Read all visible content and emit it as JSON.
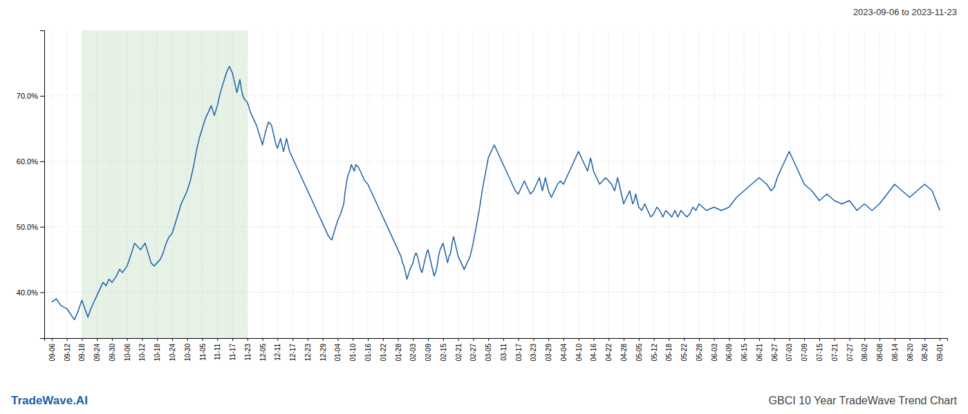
{
  "chart_data": {
    "type": "line",
    "title": "GBCI 10 Year TradeWave Trend Chart",
    "subtitle": "2023-09-06 to 2023-11-23",
    "annotations": [
      "TradeWave.AI"
    ],
    "color": "#1a5fa8",
    "grid": true,
    "highlight": {
      "from": 2,
      "to": 13,
      "color": "#d6ead6"
    },
    "xlim": [
      -0.5,
      59.5
    ],
    "xticks": [
      {
        "value": 0,
        "label": "09-06"
      },
      {
        "value": 1,
        "label": "09-12"
      },
      {
        "value": 2,
        "label": "09-18"
      },
      {
        "value": 3,
        "label": "09-24"
      },
      {
        "value": 4,
        "label": "09-30"
      },
      {
        "value": 5,
        "label": "10-06"
      },
      {
        "value": 6,
        "label": "10-12"
      },
      {
        "value": 7,
        "label": "10-18"
      },
      {
        "value": 8,
        "label": "10-24"
      },
      {
        "value": 9,
        "label": "10-30"
      },
      {
        "value": 10,
        "label": "11-05"
      },
      {
        "value": 11,
        "label": "11-11"
      },
      {
        "value": 12,
        "label": "11-17"
      },
      {
        "value": 13,
        "label": "11-23"
      },
      {
        "value": 14,
        "label": "12-05"
      },
      {
        "value": 15,
        "label": "12-11"
      },
      {
        "value": 16,
        "label": "12-17"
      },
      {
        "value": 17,
        "label": "12-23"
      },
      {
        "value": 18,
        "label": "12-29"
      },
      {
        "value": 19,
        "label": "01-04"
      },
      {
        "value": 20,
        "label": "01-10"
      },
      {
        "value": 21,
        "label": "01-16"
      },
      {
        "value": 22,
        "label": "01-22"
      },
      {
        "value": 23,
        "label": "01-28"
      },
      {
        "value": 24,
        "label": "02-03"
      },
      {
        "value": 25,
        "label": "02-09"
      },
      {
        "value": 26,
        "label": "02-15"
      },
      {
        "value": 27,
        "label": "02-21"
      },
      {
        "value": 28,
        "label": "02-27"
      },
      {
        "value": 29,
        "label": "03-05"
      },
      {
        "value": 30,
        "label": "03-11"
      },
      {
        "value": 31,
        "label": "03-17"
      },
      {
        "value": 32,
        "label": "03-23"
      },
      {
        "value": 33,
        "label": "03-29"
      },
      {
        "value": 34,
        "label": "04-04"
      },
      {
        "value": 35,
        "label": "04-10"
      },
      {
        "value": 36,
        "label": "04-16"
      },
      {
        "value": 37,
        "label": "04-22"
      },
      {
        "value": 38,
        "label": "04-28"
      },
      {
        "value": 39,
        "label": "05-05"
      },
      {
        "value": 40,
        "label": "05-12"
      },
      {
        "value": 41,
        "label": "05-18"
      },
      {
        "value": 42,
        "label": "05-22"
      },
      {
        "value": 43,
        "label": "05-28"
      },
      {
        "value": 44,
        "label": "06-03"
      },
      {
        "value": 45,
        "label": "06-09"
      },
      {
        "value": 46,
        "label": "06-15"
      },
      {
        "value": 47,
        "label": "06-21"
      },
      {
        "value": 48,
        "label": "06-27"
      },
      {
        "value": 49,
        "label": "07-03"
      },
      {
        "value": 50,
        "label": "07-09"
      },
      {
        "value": 51,
        "label": "07-15"
      },
      {
        "value": 52,
        "label": "07-21"
      },
      {
        "value": 53,
        "label": "07-27"
      },
      {
        "value": 54,
        "label": "08-02"
      },
      {
        "value": 55,
        "label": "08-08"
      },
      {
        "value": 56,
        "label": "08-14"
      },
      {
        "value": 57,
        "label": "08-20"
      },
      {
        "value": 58,
        "label": "08-26"
      },
      {
        "value": 59,
        "label": "09-01"
      }
    ],
    "ylim": [
      33,
      80
    ],
    "yticks": [
      {
        "value": 40.0,
        "label": "40.0%"
      },
      {
        "value": 50.0,
        "label": "50.0%"
      },
      {
        "value": 60.0,
        "label": "60.0%"
      },
      {
        "value": 70.0,
        "label": "70.0%"
      }
    ],
    "x": [
      0,
      0.3,
      0.6,
      1.0,
      1.3,
      1.5,
      1.7,
      2.0,
      2.2,
      2.4,
      2.6,
      2.8,
      3.0,
      3.2,
      3.4,
      3.6,
      3.8,
      4.0,
      4.3,
      4.5,
      4.7,
      5.0,
      5.3,
      5.5,
      5.7,
      5.9,
      6.2,
      6.4,
      6.6,
      6.8,
      7.0,
      7.2,
      7.4,
      7.6,
      7.8,
      8.0,
      8.2,
      8.4,
      8.6,
      8.8,
      9.0,
      9.2,
      9.4,
      9.6,
      9.8,
      10.0,
      10.2,
      10.4,
      10.6,
      10.8,
      11.0,
      11.2,
      11.4,
      11.6,
      11.8,
      12.0,
      12.1,
      12.2,
      12.3,
      12.4,
      12.5,
      12.6,
      12.7,
      12.8,
      13.0,
      13.2,
      13.4,
      13.6,
      13.8,
      14.0,
      14.2,
      14.4,
      14.6,
      14.7,
      14.8,
      14.9,
      15.0,
      15.2,
      15.3,
      15.4,
      15.5,
      15.6,
      15.7,
      15.8,
      16.0,
      16.2,
      16.4,
      16.6,
      16.8,
      17.0,
      17.2,
      17.4,
      17.6,
      17.8,
      18.0,
      18.2,
      18.4,
      18.6,
      18.8,
      19.0,
      19.2,
      19.4,
      19.5,
      19.6,
      19.7,
      19.8,
      19.9,
      20.0,
      20.1,
      20.2,
      20.4,
      20.6,
      20.8,
      21.0,
      21.2,
      21.4,
      21.6,
      21.8,
      22.0,
      22.2,
      22.4,
      22.6,
      22.8,
      23.0,
      23.2,
      23.3,
      23.4,
      23.5,
      23.6,
      23.8,
      24.0,
      24.1,
      24.2,
      24.3,
      24.4,
      24.5,
      24.6,
      24.7,
      24.8,
      24.9,
      25.0,
      25.1,
      25.2,
      25.3,
      25.4,
      25.5,
      25.6,
      25.7,
      25.8,
      25.9,
      26.0,
      26.1,
      26.2,
      26.3,
      26.4,
      26.5,
      26.6,
      26.7,
      26.8,
      26.9,
      27.0,
      27.2,
      27.4,
      27.6,
      27.8,
      28.0,
      28.2,
      28.4,
      28.6,
      28.8,
      29.0,
      29.2,
      29.4,
      29.6,
      29.8,
      30.0,
      30.2,
      30.4,
      30.6,
      30.8,
      31.0,
      31.2,
      31.4,
      31.6,
      31.8,
      32.0,
      32.2,
      32.4,
      32.5,
      32.6,
      32.7,
      32.8,
      32.9,
      33.0,
      33.2,
      33.4,
      33.6,
      33.8,
      34.0,
      34.2,
      34.4,
      34.6,
      34.8,
      35.0,
      35.2,
      35.4,
      35.6,
      35.7,
      35.8,
      35.9,
      36.0,
      36.2,
      36.4,
      36.6,
      36.8,
      37.0,
      37.2,
      37.4,
      37.5,
      37.6,
      37.7,
      37.8,
      37.9,
      38.0,
      38.2,
      38.4,
      38.5,
      38.6,
      38.7,
      38.8,
      38.9,
      39.0,
      39.2,
      39.4,
      39.6,
      39.8,
      40.0,
      40.2,
      40.4,
      40.6,
      40.8,
      41.0,
      41.2,
      41.4,
      41.6,
      41.8,
      42.0,
      42.2,
      42.4,
      42.6,
      42.8,
      43.0,
      43.5,
      44.0,
      44.5,
      45.0,
      45.5,
      46.0,
      46.5,
      47.0,
      47.5,
      47.8,
      48.0,
      48.2,
      48.4,
      48.6,
      48.8,
      49.0,
      49.2,
      49.4,
      49.6,
      49.8,
      50.0,
      50.5,
      51.0,
      51.5,
      52.0,
      52.5,
      53.0,
      53.5,
      54.0,
      54.5,
      55.0,
      55.5,
      56.0,
      56.5,
      57.0,
      57.5,
      58.0,
      58.5,
      59.0
    ],
    "values": [
      38.5,
      39.0,
      38.0,
      37.5,
      36.5,
      35.8,
      36.8,
      38.8,
      37.5,
      36.2,
      37.5,
      38.5,
      39.5,
      40.5,
      41.5,
      41.0,
      42.0,
      41.5,
      42.5,
      43.5,
      43.0,
      44.0,
      46.0,
      47.5,
      47.0,
      46.5,
      47.5,
      46.0,
      44.5,
      44.0,
      44.5,
      45.0,
      46.0,
      47.5,
      48.5,
      49.0,
      50.5,
      52.0,
      53.5,
      54.5,
      55.5,
      57.0,
      59.0,
      61.5,
      63.5,
      65.0,
      66.5,
      67.5,
      68.5,
      67.0,
      68.5,
      70.5,
      72.0,
      73.5,
      74.5,
      73.5,
      72.5,
      71.5,
      70.5,
      71.5,
      72.5,
      71.0,
      70.0,
      69.5,
      69.0,
      67.5,
      66.5,
      65.5,
      64.0,
      62.5,
      64.5,
      66.0,
      65.5,
      64.5,
      63.5,
      62.5,
      62.0,
      63.5,
      62.5,
      61.5,
      62.5,
      63.5,
      62.5,
      61.5,
      60.5,
      59.5,
      58.5,
      57.5,
      56.5,
      55.5,
      54.5,
      53.5,
      52.5,
      51.5,
      50.5,
      49.5,
      48.5,
      48.0,
      49.5,
      51.0,
      52.0,
      53.5,
      55.5,
      57.0,
      58.0,
      58.5,
      59.5,
      59.0,
      58.5,
      59.5,
      59.0,
      58.0,
      57.0,
      56.5,
      55.5,
      54.5,
      53.5,
      52.5,
      51.5,
      50.5,
      49.5,
      48.5,
      47.5,
      46.5,
      45.5,
      44.5,
      44.0,
      43.0,
      42.0,
      43.5,
      44.5,
      45.5,
      46.0,
      45.5,
      44.5,
      43.5,
      43.0,
      44.0,
      45.0,
      46.0,
      46.5,
      45.5,
      44.5,
      43.5,
      42.5,
      43.0,
      44.0,
      45.5,
      46.5,
      47.0,
      47.5,
      46.5,
      45.5,
      44.5,
      45.5,
      46.0,
      47.5,
      48.5,
      47.5,
      46.5,
      45.5,
      44.5,
      43.5,
      44.5,
      45.5,
      47.5,
      50.0,
      52.5,
      55.5,
      58.0,
      60.5,
      61.5,
      62.5,
      61.5,
      60.5,
      59.5,
      58.5,
      57.5,
      56.5,
      55.5,
      55.0,
      56.0,
      57.0,
      56.0,
      55.0,
      55.5,
      56.5,
      57.5,
      56.5,
      55.5,
      56.5,
      57.5,
      56.5,
      55.5,
      54.5,
      55.5,
      56.5,
      57.0,
      56.5,
      57.5,
      58.5,
      59.5,
      60.5,
      61.5,
      60.5,
      59.5,
      58.5,
      59.5,
      60.5,
      59.5,
      58.5,
      57.5,
      56.5,
      57.0,
      57.5,
      57.0,
      56.5,
      55.5,
      56.5,
      57.5,
      56.5,
      55.5,
      54.5,
      53.5,
      54.5,
      55.5,
      54.5,
      53.5,
      54.0,
      55.0,
      54.0,
      53.0,
      52.5,
      53.5,
      52.5,
      51.5,
      52.0,
      53.0,
      52.5,
      51.5,
      52.5,
      52.0,
      51.5,
      52.5,
      51.5,
      52.5,
      52.0,
      51.5,
      52.0,
      53.0,
      52.5,
      53.5,
      52.5,
      53.0,
      52.5,
      53.0,
      54.5,
      55.5,
      56.5,
      57.5,
      56.5,
      55.5,
      56.0,
      57.5,
      58.5,
      59.5,
      60.5,
      61.5,
      60.5,
      59.5,
      58.5,
      57.5,
      56.5,
      55.5,
      54.0,
      55.0,
      54.0,
      53.5,
      54.0,
      52.5,
      53.5,
      52.5,
      53.5,
      55.0,
      56.5,
      55.5,
      54.5,
      55.5,
      56.5,
      55.5,
      52.5
    ]
  }
}
